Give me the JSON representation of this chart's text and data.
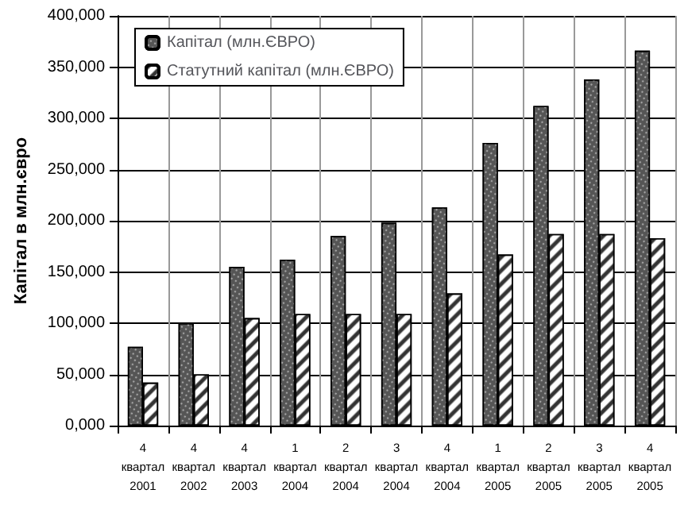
{
  "chart_data": {
    "type": "bar",
    "ylabel": "Капітал в млн.євро",
    "categories": [
      "4\nквартал\n2001",
      "4\nквартал\n2002",
      "4\nквартал\n2003",
      "1\nквартал\n2004",
      "2\nквартал\n2004",
      "3\nквартал\n2004",
      "4\nквартал\n2004",
      "1\nквартал\n2005",
      "2\nквартал\n2005",
      "3\nквартал\n2005",
      "4\nквартал\n2005"
    ],
    "series": [
      {
        "name": "Капітал (млн.ЄВРО)",
        "color": "#555555",
        "values": [
          77000,
          100000,
          155000,
          162000,
          185000,
          198000,
          213000,
          276000,
          312000,
          338000,
          366000
        ]
      },
      {
        "name": "Статутний капітал (млн.ЄВРО)",
        "color": "#ffffff",
        "values": [
          42000,
          50000,
          105000,
          109000,
          109000,
          109000,
          129000,
          167000,
          187000,
          187000,
          183000
        ]
      }
    ],
    "ylim": [
      0,
      400000
    ],
    "yticks": [
      {
        "value": 0,
        "label": "0,000"
      },
      {
        "value": 50000,
        "label": "50,000"
      },
      {
        "value": 100000,
        "label": "100,000"
      },
      {
        "value": 150000,
        "label": "150,000"
      },
      {
        "value": 200000,
        "label": "200,000"
      },
      {
        "value": 250000,
        "label": "250,000"
      },
      {
        "value": 300000,
        "label": "300,000"
      },
      {
        "value": 350000,
        "label": "350,000"
      },
      {
        "value": 400000,
        "label": "400,000"
      }
    ],
    "grid": true,
    "legend": "top left"
  }
}
